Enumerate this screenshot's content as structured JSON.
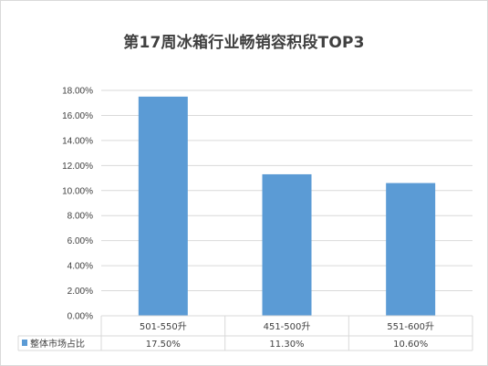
{
  "chart_data": {
    "type": "bar",
    "title": "第17周冰箱行业畅销容积段TOP3",
    "categories": [
      "501-550升",
      "451-500升",
      "551-600升"
    ],
    "series": [
      {
        "name": "整体市场占比",
        "values": [
          17.5,
          11.3,
          10.6
        ],
        "labels": [
          "17.50%",
          "11.30%",
          "10.60%"
        ]
      }
    ],
    "ylim": [
      0,
      18
    ],
    "yticks": [
      "0.00%",
      "2.00%",
      "4.00%",
      "6.00%",
      "8.00%",
      "10.00%",
      "12.00%",
      "14.00%",
      "16.00%",
      "18.00%"
    ],
    "grid": true,
    "legend": "bottom-left (data table)",
    "colors": {
      "bar": "#5b9bd5",
      "grid": "#d9d9d9",
      "text": "#404040"
    }
  }
}
